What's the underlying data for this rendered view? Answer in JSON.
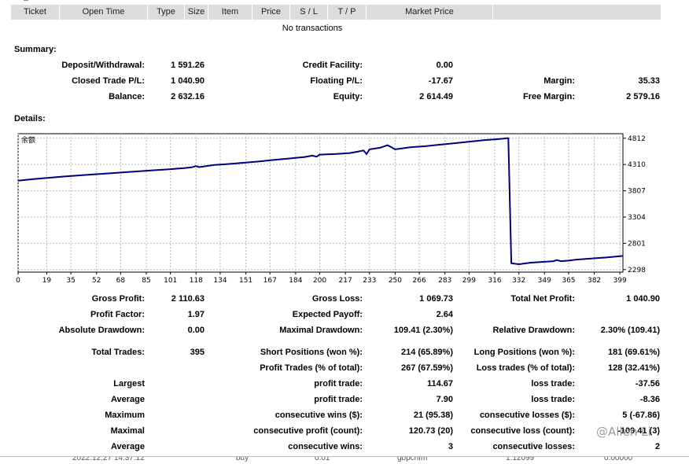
{
  "columns": [
    "Ticket",
    "Open Time",
    "Type",
    "Size",
    "Item",
    "Price",
    "S / L",
    "T / P",
    "Market Price"
  ],
  "no_transactions": "No transactions",
  "summary": {
    "title": "Summary:",
    "deposit_label": "Deposit/Withdrawal:",
    "deposit_value": "1 591.26",
    "credit_label": "Credit Facility:",
    "credit_value": "0.00",
    "closed_label": "Closed Trade P/L:",
    "closed_value": "1 040.90",
    "floating_label": "Floating P/L:",
    "floating_value": "-17.67",
    "margin_label": "Margin:",
    "margin_value": "35.33",
    "balance_label": "Balance:",
    "balance_value": "2 632.16",
    "equity_label": "Equity:",
    "equity_value": "2 614.49",
    "free_margin_label": "Free Margin:",
    "free_margin_value": "2 579.16"
  },
  "details": {
    "title": "Details:",
    "gross_profit_label": "Gross Profit:",
    "gross_profit_value": "2 110.63",
    "gross_loss_label": "Gross Loss:",
    "gross_loss_value": "1 069.73",
    "net_profit_label": "Total Net Profit:",
    "net_profit_value": "1 040.90",
    "profit_factor_label": "Profit Factor:",
    "profit_factor_value": "1.97",
    "expected_payoff_label": "Expected Payoff:",
    "expected_payoff_value": "2.64",
    "abs_dd_label": "Absolute Drawdown:",
    "abs_dd_value": "0.00",
    "max_dd_label": "Maximal Drawdown:",
    "max_dd_value": "109.41 (2.30%)",
    "rel_dd_label": "Relative Drawdown:",
    "rel_dd_value": "2.30% (109.41)",
    "total_trades_label": "Total Trades:",
    "total_trades_value": "395",
    "short_label": "Short Positions (won %):",
    "short_value": "214 (65.89%)",
    "long_label": "Long Positions (won %):",
    "long_value": "181 (69.61%)",
    "profit_trades_label": "Profit Trades (% of total):",
    "profit_trades_value": "267 (67.59%)",
    "loss_trades_label": "Loss trades (% of total):",
    "loss_trades_value": "128 (32.41%)",
    "largest_label": "Largest",
    "largest_profit_label": "profit trade:",
    "largest_profit_value": "114.67",
    "largest_loss_label": "loss trade:",
    "largest_loss_value": "-37.56",
    "average_label": "Average",
    "average_profit_label": "profit trade:",
    "average_profit_value": "7.90",
    "average_loss_label": "loss trade:",
    "average_loss_value": "-8.36",
    "maximum_label": "Maximum",
    "max_cons_wins_label": "consecutive wins ($):",
    "max_cons_wins_value": "21 (95.38)",
    "max_cons_losses_label": "consecutive losses ($):",
    "max_cons_losses_value": "5 (-67.86)",
    "maximal_label": "Maximal",
    "maximal_profit_label": "consecutive profit (count):",
    "maximal_profit_value": "120.73 (20)",
    "maximal_loss_label": "consecutive loss (count):",
    "maximal_loss_value": "-109.41 (3)",
    "average2_label": "Average",
    "avg_cons_wins_label": "consecutive wins:",
    "avg_cons_wins_value": "3",
    "avg_cons_losses_label": "consecutive losses:",
    "avg_cons_losses_value": "2"
  },
  "chart_data": {
    "type": "line",
    "title": "余额",
    "x_ticks": [
      0,
      19,
      35,
      52,
      68,
      85,
      101,
      118,
      134,
      151,
      167,
      184,
      200,
      217,
      233,
      250,
      266,
      283,
      299,
      316,
      332,
      349,
      365,
      382,
      399
    ],
    "y_ticks": [
      4812,
      4310,
      3807,
      3304,
      2801,
      2298
    ],
    "xlim": [
      0,
      401
    ],
    "ylim": [
      2250,
      4900
    ],
    "series": [
      {
        "name": "Balance",
        "color": "#00007f",
        "x": [
          0,
          10,
          30,
          50,
          70,
          90,
          100,
          110,
          115,
          118,
          120,
          130,
          140,
          150,
          160,
          170,
          180,
          190,
          195,
          198,
          200,
          210,
          220,
          225,
          229,
          231,
          233,
          240,
          245,
          250,
          260,
          270,
          280,
          290,
          300,
          310,
          316,
          320,
          324,
          325,
          327,
          332,
          340,
          350,
          355,
          357,
          360,
          365,
          370,
          380,
          390,
          401
        ],
        "y": [
          4000,
          4030,
          4080,
          4120,
          4160,
          4200,
          4220,
          4240,
          4255,
          4280,
          4260,
          4300,
          4320,
          4345,
          4370,
          4400,
          4425,
          4455,
          4480,
          4460,
          4500,
          4510,
          4530,
          4555,
          4580,
          4510,
          4600,
          4630,
          4680,
          4600,
          4640,
          4660,
          4690,
          4720,
          4750,
          4780,
          4790,
          4800,
          4812,
          4812,
          2420,
          2400,
          2430,
          2450,
          2460,
          2480,
          2460,
          2470,
          2490,
          2510,
          2530,
          2560
        ]
      }
    ]
  },
  "footer": {
    "c1": "2022.12.27 14:37:12",
    "c2": "buy",
    "c3": "0.01",
    "c4": "gbpchfm",
    "c5": "1.12099",
    "c6": "0.00000"
  },
  "watermark": "@Allen Li"
}
